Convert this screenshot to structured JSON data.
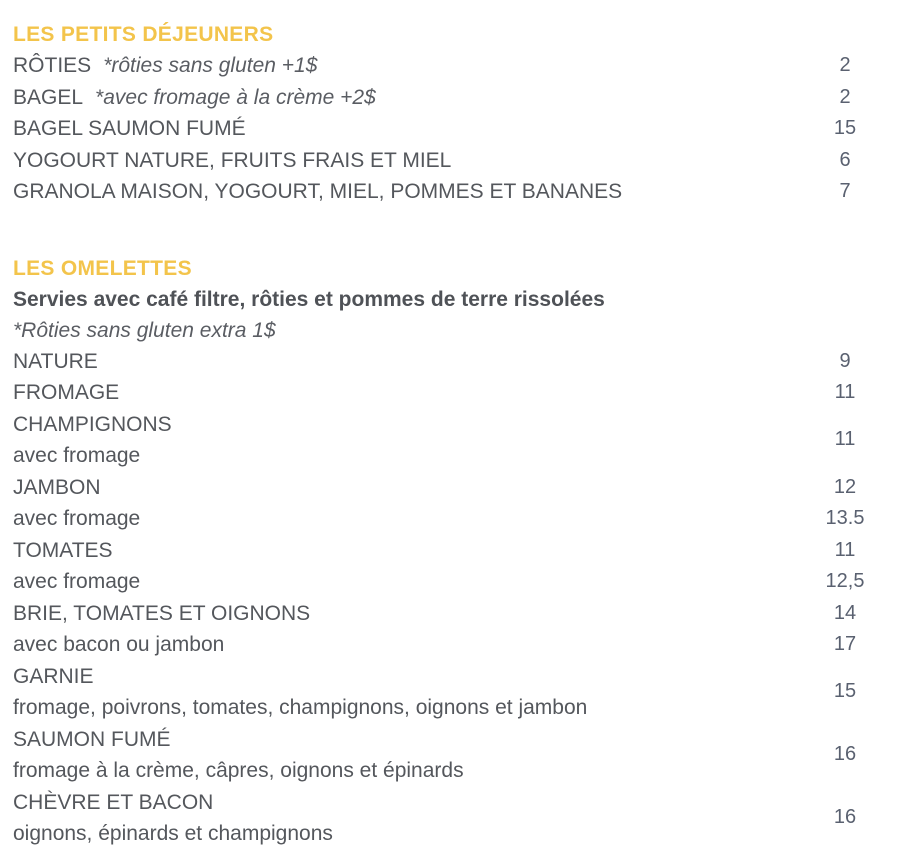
{
  "colors": {
    "accent": "#f3c44b",
    "body_text": "#54575c",
    "price_text": "#5a6170",
    "background": "#ffffff"
  },
  "sections": [
    {
      "title": "LES PETITS DÉJEUNERS",
      "intro_bold": null,
      "intro_italic": null,
      "rows": [
        {
          "lines": [
            "RÔTIES"
          ],
          "note": "*rôties sans gluten +1$",
          "price": "2"
        },
        {
          "lines": [
            "BAGEL"
          ],
          "note": "*avec fromage à la crème +2$",
          "price": "2"
        },
        {
          "lines": [
            "BAGEL SAUMON FUMÉ"
          ],
          "price": "15"
        },
        {
          "lines": [
            "YOGOURT NATURE, FRUITS FRAIS ET MIEL"
          ],
          "price": "6"
        },
        {
          "lines": [
            "GRANOLA MAISON, YOGOURT, MIEL, POMMES ET BANANES"
          ],
          "price": "7"
        }
      ]
    },
    {
      "title": "LES OMELETTES",
      "intro_bold": "Servies avec café filtre, rôties et pommes de terre rissolées",
      "intro_italic": "*Rôties sans gluten extra 1$",
      "rows": [
        {
          "lines": [
            "NATURE"
          ],
          "price": "9"
        },
        {
          "lines": [
            "FROMAGE"
          ],
          "price": "11"
        },
        {
          "lines": [
            "CHAMPIGNONS",
            "avec fromage"
          ],
          "price": "11"
        },
        {
          "lines": [
            "JAMBON"
          ],
          "price": "12"
        },
        {
          "lines": [
            "avec fromage"
          ],
          "price": "13.5"
        },
        {
          "lines": [
            "TOMATES"
          ],
          "price": "11"
        },
        {
          "lines": [
            "avec fromage"
          ],
          "price": "12,5"
        },
        {
          "lines": [
            "BRIE, TOMATES ET OIGNONS"
          ],
          "price": "14"
        },
        {
          "lines": [
            "avec bacon ou jambon"
          ],
          "price": "17"
        },
        {
          "lines": [
            "GARNIE",
            "fromage, poivrons, tomates, champignons, oignons et jambon"
          ],
          "price": "15"
        },
        {
          "lines": [
            "SAUMON FUMÉ",
            "fromage à la crème, câpres, oignons et épinards"
          ],
          "price": "16"
        },
        {
          "lines": [
            "CHÈVRE ET BACON",
            "oignons, épinards et champignons"
          ],
          "price": "16"
        }
      ]
    }
  ]
}
